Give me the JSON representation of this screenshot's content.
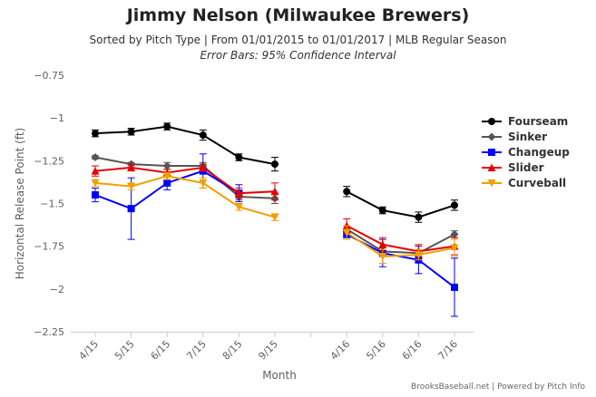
{
  "chart_data": {
    "type": "line",
    "title": "Jimmy Nelson (Milwaukee Brewers)",
    "subtitle": "Sorted by Pitch Type | From 01/01/2015 to 01/01/2017 | MLB Regular Season",
    "note": "Error Bars: 95% Confidence Interval",
    "xlabel": "Month",
    "ylabel": "Horizontal Release Point (ft)",
    "categories": [
      "4/15",
      "5/15",
      "6/15",
      "7/15",
      "8/15",
      "9/15",
      "",
      "4/16",
      "5/16",
      "6/16",
      "7/16"
    ],
    "ylim": [
      -2.25,
      -0.75
    ],
    "yticks": [
      -0.75,
      -1,
      -1.25,
      -1.5,
      -1.75,
      -2,
      -2.25
    ],
    "ytick_labels": [
      "−0.75",
      "−1",
      "−1.25",
      "−1.5",
      "−1.75",
      "−2",
      "−2.25"
    ],
    "grid": false,
    "legend_position": "right",
    "series": [
      {
        "name": "Fourseam",
        "color": "#000000",
        "marker": "circle",
        "values": [
          -1.09,
          -1.08,
          -1.05,
          -1.1,
          -1.23,
          -1.27,
          null,
          -1.43,
          -1.54,
          -1.58,
          -1.51
        ],
        "err": [
          0.02,
          0.02,
          0.02,
          0.03,
          0.02,
          0.04,
          null,
          0.03,
          0.02,
          0.03,
          0.03
        ]
      },
      {
        "name": "Sinker",
        "color": "#555555",
        "marker": "diamond",
        "values": [
          -1.23,
          -1.27,
          -1.28,
          -1.28,
          -1.46,
          -1.47,
          null,
          -1.65,
          -1.78,
          -1.79,
          -1.68
        ],
        "err": [
          0.01,
          0.01,
          0.02,
          0.02,
          0.02,
          0.03,
          null,
          0.02,
          0.02,
          0.02,
          0.02
        ]
      },
      {
        "name": "Changeup",
        "color": "#0000ff",
        "marker": "square",
        "values": [
          -1.45,
          -1.53,
          -1.38,
          -1.31,
          -1.44,
          null,
          null,
          -1.68,
          -1.79,
          -1.83,
          -1.99
        ],
        "err": [
          0.04,
          0.18,
          0.04,
          0.1,
          0.05,
          null,
          null,
          0.02,
          0.08,
          0.08,
          0.17
        ]
      },
      {
        "name": "Slider",
        "color": "#e60000",
        "marker": "triangle",
        "values": [
          -1.31,
          -1.29,
          -1.32,
          -1.29,
          -1.44,
          -1.43,
          null,
          -1.63,
          -1.74,
          -1.78,
          -1.75
        ],
        "err": [
          0.03,
          0.02,
          0.02,
          0.02,
          0.03,
          0.05,
          null,
          0.04,
          0.04,
          0.04,
          0.05
        ]
      },
      {
        "name": "Curveball",
        "color": "#f0a000",
        "marker": "triangle-down",
        "values": [
          -1.38,
          -1.4,
          -1.34,
          -1.38,
          -1.52,
          -1.58,
          null,
          -1.67,
          -1.81,
          -1.8,
          -1.76
        ],
        "err": [
          0.02,
          0.02,
          0.02,
          0.03,
          0.02,
          0.02,
          null,
          0.04,
          0.04,
          0.03,
          0.05
        ]
      }
    ]
  },
  "credits": "BrooksBaseball.net | Powered by Pitch Info"
}
